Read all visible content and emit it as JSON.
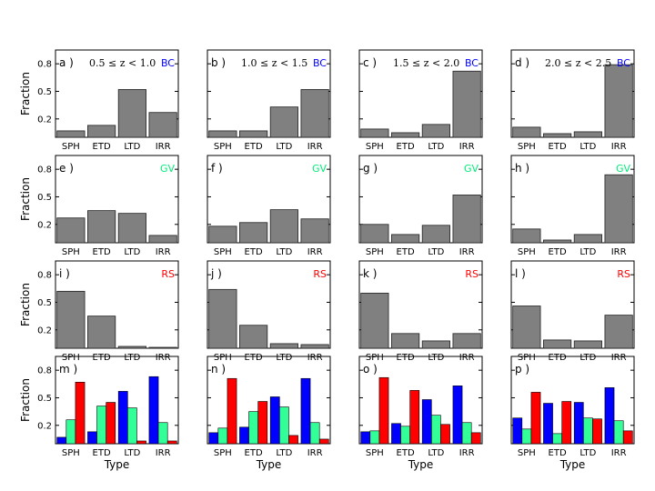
{
  "figure": {
    "ylabel": "Fraction",
    "xlabel": "Type",
    "categories": [
      "SPH",
      "ETD",
      "LTD",
      "IRR"
    ],
    "yticks": [
      0.2,
      0.5,
      0.8
    ],
    "ylim": [
      0,
      0.95
    ],
    "colors": {
      "BC": "#0000ff",
      "GV": "#00ee77",
      "RS": "#ff0000",
      "gray": "#808080",
      "blue_bar": "#0000ff",
      "green_bar": "#33ff99",
      "red_bar": "#ff0000"
    }
  },
  "chart_data": [
    {
      "type": "bar",
      "label": "a )",
      "redshift": "0.5 ≤ z < 1.0",
      "group": "BC",
      "categories": [
        "SPH",
        "ETD",
        "LTD",
        "IRR"
      ],
      "values": [
        0.07,
        0.13,
        0.52,
        0.27
      ]
    },
    {
      "type": "bar",
      "label": "b )",
      "redshift": "1.0 ≤ z < 1.5",
      "group": "BC",
      "categories": [
        "SPH",
        "ETD",
        "LTD",
        "IRR"
      ],
      "values": [
        0.07,
        0.07,
        0.33,
        0.52
      ]
    },
    {
      "type": "bar",
      "label": "c )",
      "redshift": "1.5 ≤ z < 2.0",
      "group": "BC",
      "categories": [
        "SPH",
        "ETD",
        "LTD",
        "IRR"
      ],
      "values": [
        0.09,
        0.05,
        0.14,
        0.72
      ]
    },
    {
      "type": "bar",
      "label": "d )",
      "redshift": "2.0 ≤ z < 2.5",
      "group": "BC",
      "categories": [
        "SPH",
        "ETD",
        "LTD",
        "IRR"
      ],
      "values": [
        0.11,
        0.04,
        0.06,
        0.79
      ]
    },
    {
      "type": "bar",
      "label": "e )",
      "group": "GV",
      "categories": [
        "SPH",
        "ETD",
        "LTD",
        "IRR"
      ],
      "values": [
        0.27,
        0.35,
        0.32,
        0.08
      ]
    },
    {
      "type": "bar",
      "label": "f )",
      "group": "GV",
      "categories": [
        "SPH",
        "ETD",
        "LTD",
        "IRR"
      ],
      "values": [
        0.18,
        0.22,
        0.36,
        0.26
      ]
    },
    {
      "type": "bar",
      "label": "g )",
      "group": "GV",
      "categories": [
        "SPH",
        "ETD",
        "LTD",
        "IRR"
      ],
      "values": [
        0.2,
        0.09,
        0.19,
        0.52
      ]
    },
    {
      "type": "bar",
      "label": "h )",
      "group": "GV",
      "categories": [
        "SPH",
        "ETD",
        "LTD",
        "IRR"
      ],
      "values": [
        0.15,
        0.03,
        0.09,
        0.74
      ]
    },
    {
      "type": "bar",
      "label": "i )",
      "group": "RS",
      "categories": [
        "SPH",
        "ETD",
        "LTD",
        "IRR"
      ],
      "values": [
        0.62,
        0.35,
        0.02,
        0.01
      ]
    },
    {
      "type": "bar",
      "label": "j )",
      "group": "RS",
      "categories": [
        "SPH",
        "ETD",
        "LTD",
        "IRR"
      ],
      "values": [
        0.64,
        0.25,
        0.05,
        0.04
      ]
    },
    {
      "type": "bar",
      "label": "k )",
      "group": "RS",
      "categories": [
        "SPH",
        "ETD",
        "LTD",
        "IRR"
      ],
      "values": [
        0.6,
        0.16,
        0.08,
        0.16
      ]
    },
    {
      "type": "bar",
      "label": "l )",
      "group": "RS",
      "categories": [
        "SPH",
        "ETD",
        "LTD",
        "IRR"
      ],
      "values": [
        0.46,
        0.09,
        0.08,
        0.36
      ]
    },
    {
      "type": "bar",
      "label": "m )",
      "grouped": true,
      "categories": [
        "SPH",
        "ETD",
        "LTD",
        "IRR"
      ],
      "series": [
        {
          "name": "BC",
          "values": [
            0.07,
            0.13,
            0.57,
            0.73
          ]
        },
        {
          "name": "GV",
          "values": [
            0.26,
            0.41,
            0.39,
            0.23
          ]
        },
        {
          "name": "RS",
          "values": [
            0.67,
            0.45,
            0.03,
            0.03
          ]
        }
      ]
    },
    {
      "type": "bar",
      "label": "n )",
      "grouped": true,
      "categories": [
        "SPH",
        "ETD",
        "LTD",
        "IRR"
      ],
      "series": [
        {
          "name": "BC",
          "values": [
            0.12,
            0.18,
            0.51,
            0.71
          ]
        },
        {
          "name": "GV",
          "values": [
            0.17,
            0.35,
            0.4,
            0.23
          ]
        },
        {
          "name": "RS",
          "values": [
            0.71,
            0.46,
            0.09,
            0.05
          ]
        }
      ]
    },
    {
      "type": "bar",
      "label": "o )",
      "grouped": true,
      "categories": [
        "SPH",
        "ETD",
        "LTD",
        "IRR"
      ],
      "series": [
        {
          "name": "BC",
          "values": [
            0.13,
            0.22,
            0.48,
            0.63
          ]
        },
        {
          "name": "GV",
          "values": [
            0.14,
            0.19,
            0.31,
            0.23
          ]
        },
        {
          "name": "RS",
          "values": [
            0.72,
            0.58,
            0.21,
            0.12
          ]
        }
      ]
    },
    {
      "type": "bar",
      "label": "p )",
      "grouped": true,
      "categories": [
        "SPH",
        "ETD",
        "LTD",
        "IRR"
      ],
      "series": [
        {
          "name": "BC",
          "values": [
            0.28,
            0.44,
            0.45,
            0.61
          ]
        },
        {
          "name": "GV",
          "values": [
            0.16,
            0.11,
            0.28,
            0.25
          ]
        },
        {
          "name": "RS",
          "values": [
            0.56,
            0.46,
            0.27,
            0.14
          ]
        }
      ]
    }
  ]
}
